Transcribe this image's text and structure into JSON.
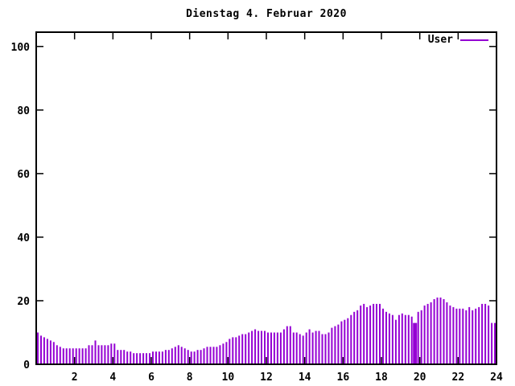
{
  "window": {
    "background": "#ffffff"
  },
  "chart_data": {
    "type": "bar",
    "title": "Dienstag 4. Februar 2020",
    "legend": {
      "label": "User",
      "position": "top-right-inside"
    },
    "series_color": "#9400d3",
    "axis_color": "#000000",
    "xlabel": "",
    "ylabel": "",
    "xlim": [
      0,
      24
    ],
    "ylim": [
      0,
      104.5
    ],
    "x_ticks": [
      2,
      4,
      6,
      8,
      10,
      12,
      14,
      16,
      18,
      20,
      22,
      24
    ],
    "y_ticks": [
      0,
      20,
      40,
      60,
      80,
      100
    ],
    "grid": false,
    "x_unit": "hour-of-day",
    "x_start_hours": 0.0833,
    "x_step_hours": 0.16667,
    "wide_bar_index": 118,
    "values": [
      10,
      9,
      8.5,
      8,
      7.5,
      7,
      6,
      5.5,
      5,
      5,
      5,
      5,
      5,
      5,
      5,
      5,
      6,
      6,
      7.5,
      6,
      6,
      6,
      6,
      6.5,
      6.5,
      4.5,
      4.5,
      4.5,
      4,
      4,
      3.5,
      3.5,
      3.5,
      3.5,
      3.5,
      3.5,
      4,
      4,
      4,
      4,
      4.5,
      4.5,
      5,
      5.5,
      6,
      5.5,
      5,
      4.5,
      4,
      4,
      4.5,
      4.5,
      5,
      5.5,
      5.5,
      5.5,
      5.5,
      6,
      6.5,
      7,
      8,
      8.5,
      8.5,
      9,
      9.5,
      9.5,
      10,
      10.5,
      11,
      10.5,
      10.5,
      10.5,
      10,
      10,
      10,
      10,
      10,
      11,
      12,
      12,
      10,
      10,
      9.5,
      9,
      10,
      11,
      10,
      10.5,
      10.5,
      9.5,
      9.5,
      10,
      11.5,
      12,
      12.5,
      13.5,
      14,
      14.5,
      15.5,
      16.5,
      17,
      18.5,
      19,
      18,
      18.5,
      19,
      19,
      19,
      17.5,
      16.5,
      16,
      15.5,
      14,
      15.5,
      16,
      15.5,
      15.5,
      15,
      13,
      16.5,
      17,
      18.5,
      19,
      19.5,
      20.5,
      21,
      21,
      20.5,
      19.5,
      18.5,
      18,
      17.5,
      17.5,
      17.5,
      17,
      18,
      17,
      17.5,
      18,
      19,
      19,
      18.5,
      13,
      13
    ]
  }
}
